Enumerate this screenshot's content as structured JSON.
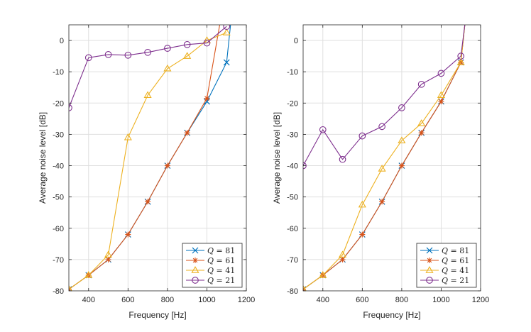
{
  "chart_data": [
    {
      "type": "line",
      "xlabel": "Frequency [Hz]",
      "ylabel": "Average noise level [dB]",
      "xlim": [
        300,
        1200
      ],
      "ylim": [
        -80,
        5
      ],
      "xticks": [
        400,
        600,
        800,
        1000,
        1200
      ],
      "yticks": [
        -80,
        -70,
        -60,
        -50,
        -40,
        -30,
        -20,
        -10,
        0
      ],
      "grid": true,
      "legend_position": "bottom-right",
      "series": [
        {
          "name": "Q = 81",
          "q_symbol": "Q",
          "q_value": "81",
          "color": "#0072BD",
          "marker": "x",
          "x": [
            300,
            400,
            500,
            600,
            700,
            800,
            900,
            1000,
            1100,
            1120
          ],
          "y": [
            -79.5,
            -75,
            -70,
            -62,
            -51.5,
            -40,
            -29.5,
            -19.5,
            -7,
            5
          ],
          "marked": [
            true,
            true,
            true,
            true,
            true,
            true,
            true,
            true,
            true,
            false
          ]
        },
        {
          "name": "Q = 61",
          "q_symbol": "Q",
          "q_value": "61",
          "color": "#D95319",
          "marker": "star",
          "x": [
            300,
            400,
            500,
            600,
            700,
            800,
            900,
            1000,
            1065
          ],
          "y": [
            -79.5,
            -75,
            -70,
            -62,
            -51.5,
            -40,
            -29.5,
            -18.5,
            5
          ],
          "marked": [
            true,
            true,
            true,
            true,
            true,
            true,
            true,
            true,
            false
          ]
        },
        {
          "name": "Q = 41",
          "q_symbol": "Q",
          "q_value": "41",
          "color": "#EDB120",
          "marker": "triangle",
          "x": [
            300,
            400,
            500,
            600,
            700,
            800,
            900,
            1000,
            1100
          ],
          "y": [
            -79.5,
            -75,
            -68.5,
            -31,
            -17.5,
            -9,
            -5,
            0,
            2.5
          ],
          "marked": [
            true,
            true,
            true,
            true,
            true,
            true,
            true,
            true,
            true
          ]
        },
        {
          "name": "Q = 21",
          "q_symbol": "Q",
          "q_value": "21",
          "color": "#7E2F8E",
          "marker": "circle",
          "x": [
            300,
            400,
            500,
            600,
            700,
            800,
            900,
            1000,
            1100
          ],
          "y": [
            -21.5,
            -5.5,
            -4.5,
            -4.7,
            -3.8,
            -2.5,
            -1.3,
            -0.8,
            4.5
          ],
          "marked": [
            true,
            true,
            true,
            true,
            true,
            true,
            true,
            true,
            true
          ]
        }
      ]
    },
    {
      "type": "line",
      "xlabel": "Frequency [Hz]",
      "ylabel": "Average noise level [dB]",
      "xlim": [
        300,
        1200
      ],
      "ylim": [
        -80,
        5
      ],
      "xticks": [
        400,
        600,
        800,
        1000,
        1200
      ],
      "yticks": [
        -80,
        -70,
        -60,
        -50,
        -40,
        -30,
        -20,
        -10,
        0
      ],
      "grid": true,
      "legend_position": "bottom-right",
      "series": [
        {
          "name": "Q = 81",
          "q_symbol": "Q",
          "q_value": "81",
          "color": "#0072BD",
          "marker": "x",
          "x": [
            300,
            400,
            500,
            600,
            700,
            800,
            900,
            1000,
            1100,
            1120
          ],
          "y": [
            -79.5,
            -75,
            -70,
            -62,
            -51.5,
            -40,
            -29.5,
            -19.5,
            -7,
            5
          ],
          "marked": [
            true,
            true,
            true,
            true,
            true,
            true,
            true,
            true,
            true,
            false
          ]
        },
        {
          "name": "Q = 61",
          "q_symbol": "Q",
          "q_value": "61",
          "color": "#D95319",
          "marker": "star",
          "x": [
            300,
            400,
            500,
            600,
            700,
            800,
            900,
            1000,
            1100,
            1120
          ],
          "y": [
            -79.5,
            -75,
            -70,
            -62,
            -51.5,
            -40,
            -29.5,
            -19.5,
            -7,
            5
          ],
          "marked": [
            true,
            true,
            true,
            true,
            true,
            true,
            true,
            true,
            true,
            false
          ]
        },
        {
          "name": "Q = 41",
          "q_symbol": "Q",
          "q_value": "41",
          "color": "#EDB120",
          "marker": "triangle",
          "x": [
            300,
            400,
            500,
            600,
            700,
            800,
            900,
            1000,
            1100,
            1120
          ],
          "y": [
            -79.5,
            -75,
            -68.5,
            -52.5,
            -41,
            -32,
            -26.5,
            -17.5,
            -7,
            5
          ],
          "marked": [
            true,
            true,
            true,
            true,
            true,
            true,
            true,
            true,
            true,
            false
          ]
        },
        {
          "name": "Q = 21",
          "q_symbol": "Q",
          "q_value": "21",
          "color": "#7E2F8E",
          "marker": "circle",
          "x": [
            300,
            400,
            500,
            600,
            700,
            800,
            900,
            1000,
            1100,
            1120
          ],
          "y": [
            -40,
            -28.5,
            -38,
            -30.5,
            -27.5,
            -21.5,
            -14,
            -10.5,
            -5,
            5
          ],
          "marked": [
            true,
            true,
            true,
            true,
            true,
            true,
            true,
            true,
            true,
            false
          ]
        }
      ]
    }
  ]
}
